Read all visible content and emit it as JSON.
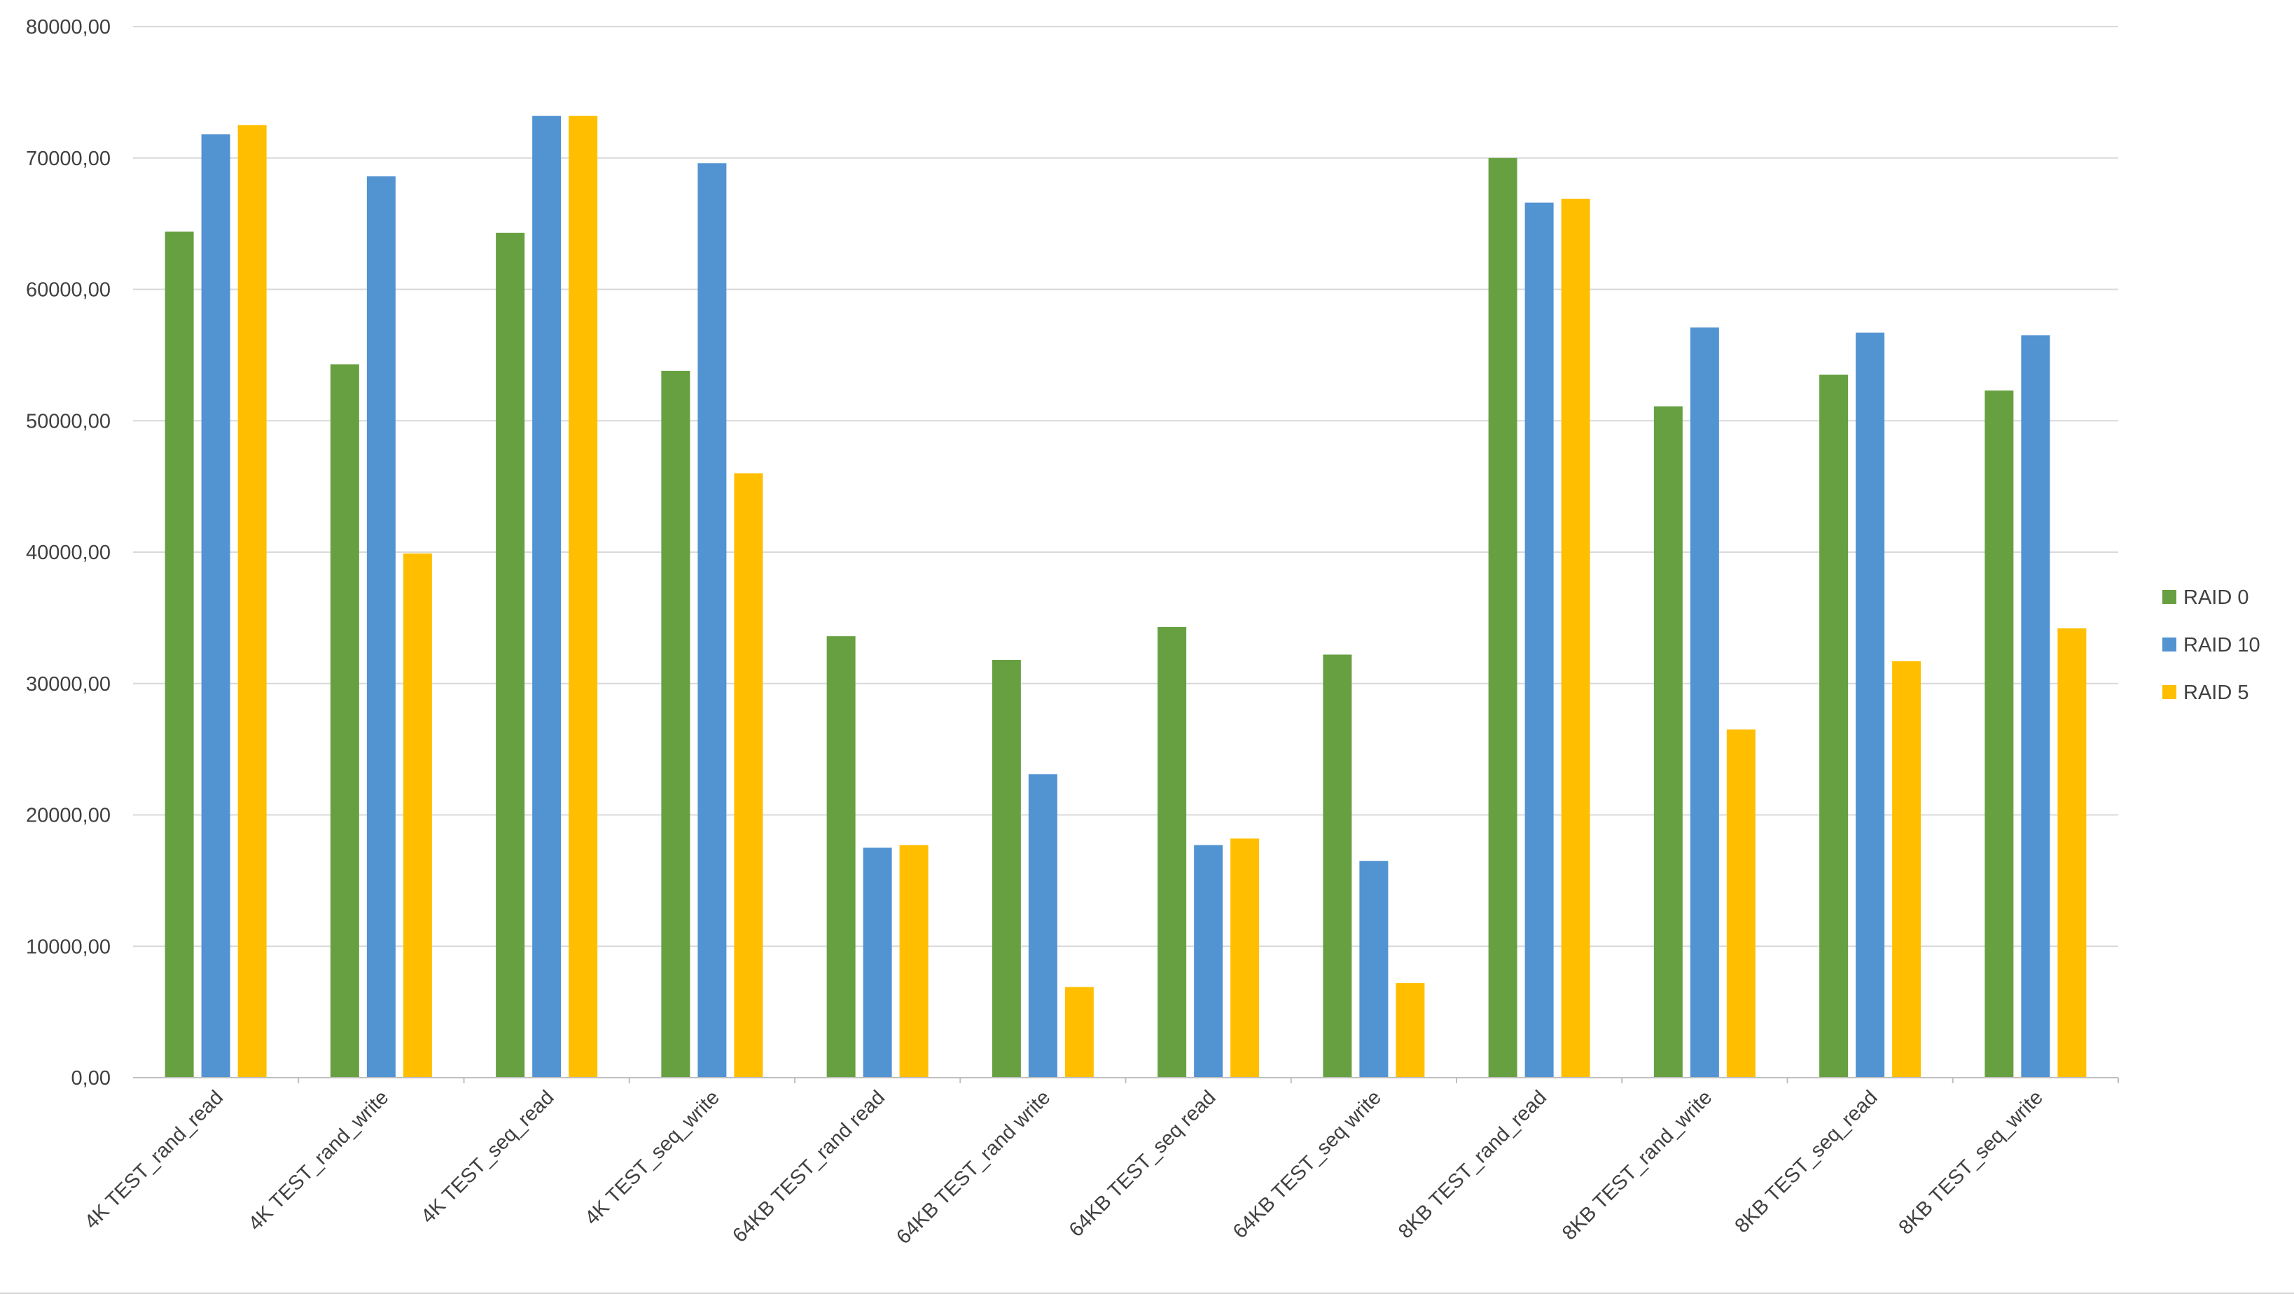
{
  "chart_data": {
    "type": "bar",
    "categories": [
      "4K TEST_rand_read",
      "4K TEST_rand_write",
      "4K TEST_seq_read",
      "4K TEST_seq_write",
      "64KB TEST_rand read",
      "64KB TEST_rand write",
      "64KB TEST_seq read",
      "64KB TEST_seq write",
      "8KB TEST_rand_read",
      "8KB TEST_rand_write",
      "8KB TEST_seq_read",
      "8KB TEST_seq_write"
    ],
    "series": [
      {
        "name": "RAID 0",
        "color": "#67a041",
        "values": [
          64400,
          54300,
          64300,
          53800,
          33600,
          31800,
          34300,
          32200,
          70000,
          51100,
          53500,
          52300
        ]
      },
      {
        "name": "RAID 10",
        "color": "#5293d2",
        "values": [
          71800,
          68600,
          73200,
          69600,
          17500,
          23100,
          17700,
          16500,
          66600,
          57100,
          56700,
          56500
        ]
      },
      {
        "name": "RAID 5",
        "color": "#ffbf00",
        "values": [
          72500,
          39900,
          73200,
          46000,
          17700,
          6900,
          18200,
          7200,
          66900,
          26500,
          31700,
          34200
        ]
      }
    ],
    "y_ticks": [
      "0,00",
      "10000,00",
      "20000,00",
      "30000,00",
      "40000,00",
      "50000,00",
      "60000,00",
      "70000,00",
      "80000,00"
    ],
    "ylim": [
      0,
      80000
    ],
    "grid": true,
    "legend_position": "right",
    "title": "",
    "xlabel": "",
    "ylabel": ""
  }
}
